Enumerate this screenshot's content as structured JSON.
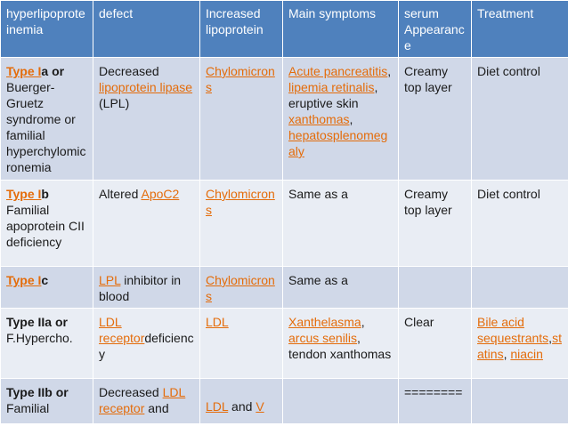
{
  "headers": [
    "hyperlipoproteinemia",
    "defect",
    "Increased lipoprotein",
    "Main symptoms",
    "serum Appearance",
    "Treatment"
  ],
  "rows": [
    {
      "c1": {
        "link": "Type I",
        "rest": "a or",
        "detail": "Buerger-Gruetz syndrome or familial hyperchylomicronemia"
      },
      "c2": {
        "a": "Decreased ",
        "link": "lipoprotein lipase",
        "b": " (LPL)"
      },
      "c3": "Chylomicrons",
      "c4": {
        "l1": "Acute pancreatitis",
        "s1": ", ",
        "l2": "lipemia retinalis",
        "s2": ", eruptive skin ",
        "l3": "xanthomas",
        "s3": ", ",
        "l4": "hepatosplenomegaly"
      },
      "c5": "Creamy top layer",
      "c6": "Diet control"
    },
    {
      "c1": {
        "link": "Type I",
        "rest": "b",
        "detail": "Familial apoprotein CII deficiency"
      },
      "c2": {
        "a": "Altered ",
        "link": "ApoC2"
      },
      "c3": "Chylomicrons",
      "c4": "Same as a",
      "c5": "Creamy top layer",
      "c6": "Diet control"
    },
    {
      "c1": {
        "link": "Type I",
        "rest": "c"
      },
      "c2": {
        "link": "LPL",
        "a": " inhibitor in blood"
      },
      "c3": "Chylomicrons",
      "c4": "Same as a",
      "c5": "",
      "c6": ""
    },
    {
      "c1": {
        "bold": "Type IIa or",
        "detail": "F.Hypercho."
      },
      "c2": {
        "link": "LDL receptor",
        "a": "deficiency"
      },
      "c3": "LDL",
      "c4": {
        "l1": "Xanthelasma",
        "s1": ", ",
        "l2": "arcus senilis",
        "s2": ", tendon xanthomas"
      },
      "c5": "Clear",
      "c6": {
        "l1": "Bile acid sequestrants",
        "s1": ",",
        "l2": "statins",
        "s2": ", ",
        "l3": "niacin"
      }
    },
    {
      "c1": {
        "bold": "Type IIb or",
        "detail": "Familial"
      },
      "c2": {
        "a": "Decreased ",
        "link": "LDL receptor",
        "b": " and"
      },
      "c3": {
        "l1": "LDL",
        "s1": " and ",
        "l2": "V"
      },
      "c4": "",
      "c5": "========",
      "c6": ""
    }
  ]
}
